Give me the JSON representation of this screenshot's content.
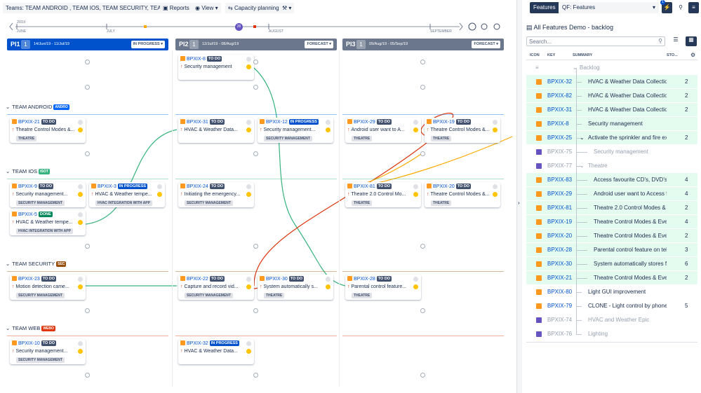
{
  "toolbar": {
    "teams": "Teams: TEAM ANDROID , TEAM IOS, TEAM SECURITY, TEAM WEB",
    "reports": "Reports",
    "view": "View",
    "capacity": "Capacity planning"
  },
  "timeline": {
    "year": "2019",
    "months": [
      "JUNE",
      "JULY",
      "AUGUST",
      "SEPTEMBER"
    ],
    "sprint": "26"
  },
  "pis": [
    {
      "name": "PI1",
      "number": "1",
      "dates": "14/Jun/19 - 11/Jul/19",
      "status": "IN PROGRESS",
      "color": "#0052cc"
    },
    {
      "name": "PI2",
      "number": "1",
      "dates": "12/Jul/19 - 08/Aug/19",
      "status": "FORECAST",
      "color": "#6b778c"
    },
    {
      "name": "PI3",
      "number": "1",
      "dates": "09/Aug/19 - 05/Sep/19",
      "status": "FORECAST",
      "color": "#6b778c"
    }
  ],
  "unplanned": [
    [],
    [
      {
        "key": "BPXIX-8",
        "status": "TO DO",
        "status_color": "#42526e",
        "title": "Security management"
      }
    ],
    []
  ],
  "teams": [
    {
      "name": "TEAM ANDROID",
      "tag": "ANDRO",
      "tag_color": "#0065ff",
      "columns": [
        [
          {
            "key": "BPXIX-21",
            "status": "TO DO",
            "status_color": "#42526e",
            "title": "Theatre Control Modes &...",
            "label": "THEATRE"
          }
        ],
        [
          {
            "key": "BPXIX-31",
            "status": "TO DO",
            "status_color": "#42526e",
            "title": "HVAC & Weather Data..."
          },
          {
            "key": "BPXIX-12",
            "status": "IN PROGRESS",
            "status_color": "#0052cc",
            "title": "Security management...",
            "label": "SECURITY MANAGEMENT"
          }
        ],
        [
          {
            "key": "BPXIX-29",
            "status": "TO DO",
            "status_color": "#42526e",
            "title": "Android user want to A...",
            "label": "THEATRE"
          },
          {
            "key": "BPXIX-19",
            "status": "TO DO",
            "status_color": "#42526e",
            "title": "Theatre Control Modes &...",
            "label": "THEATRE"
          }
        ]
      ]
    },
    {
      "name": "TEAM IOS",
      "tag": "ISOT",
      "tag_color": "#36b37e",
      "columns": [
        [
          {
            "key": "BPXIX-9",
            "status": "TO DO",
            "status_color": "#42526e",
            "title": "Security management...",
            "label": "SECURITY MANAGEMENT"
          },
          {
            "key": "BPXIX-3",
            "status": "IN PROGRESS",
            "status_color": "#0052cc",
            "title": "HVAC & Weather tempe...",
            "label": "HVAC INTEGRATION WITH APP"
          },
          {
            "key": "BPXIX-5",
            "status": "DONE",
            "status_color": "#00875a",
            "title": "HVAC & Weather tempe...",
            "label": "HVAC INTEGRATION WITH APP"
          }
        ],
        [
          {
            "key": "BPXIX-24",
            "status": "TO DO",
            "status_color": "#42526e",
            "title": "Initiating the emergency...",
            "label": "SECURITY MANAGEMENT"
          }
        ],
        [
          {
            "key": "BPXIX-81",
            "status": "TO DO",
            "status_color": "#42526e",
            "title": "Theatre 2.0 Control Mo...",
            "label": "THEATRE"
          },
          {
            "key": "BPXIX-20",
            "status": "TO DO",
            "status_color": "#42526e",
            "title": "Theatre Control Modes &...",
            "label": "THEATRE"
          }
        ]
      ]
    },
    {
      "name": "TEAM SECURITY",
      "tag": "SEC",
      "tag_color": "#974f0c",
      "columns": [
        [
          {
            "key": "BPXIX-23",
            "status": "TO DO",
            "status_color": "#42526e",
            "title": "Motion detection came...",
            "label": "SECURITY MANAGEMENT"
          }
        ],
        [
          {
            "key": "BPXIX-22",
            "status": "TO DO",
            "status_color": "#42526e",
            "title": "Capture and record vid...",
            "label": "SECURITY MANAGEMENT"
          },
          {
            "key": "BPXIX-30",
            "status": "TO DO",
            "status_color": "#42526e",
            "title": "System automatically s...",
            "label": "THEATRE"
          }
        ],
        [
          {
            "key": "BPXIX-28",
            "status": "TO DO",
            "status_color": "#42526e",
            "title": "Parental control feature...",
            "label": "THEATRE"
          }
        ]
      ]
    },
    {
      "name": "TEAM WEB",
      "tag": "WEBO",
      "tag_color": "#de350b",
      "columns": [
        [
          {
            "key": "BPXIX-10",
            "status": "TO DO",
            "status_color": "#42526e",
            "title": "Security management...",
            "label": "SECURITY MANAGEMENT"
          }
        ],
        [
          {
            "key": "BPXIX-32",
            "status": "IN PROGRESS",
            "status_color": "#0052cc",
            "title": "HVAC & Weather Data..."
          }
        ],
        []
      ]
    }
  ],
  "panel": {
    "tab": "Features",
    "filter": "QF: Features",
    "title": "All Features Demo - backlog",
    "search": "Search...",
    "columns": [
      "ICON",
      "KEY",
      "SUMMARY",
      "STO..."
    ],
    "group": "Backlog",
    "rows": [
      {
        "key": "BPXIX-32",
        "summary": "HVAC & Weather Data Collection for",
        "points": "2",
        "bg": "#e3fcef",
        "icon_color": "#ff991f"
      },
      {
        "key": "BPXIX-82",
        "summary": "HVAC & Weather Data Collection for",
        "points": "2",
        "bg": "#e3fcef",
        "icon_color": "#ff991f"
      },
      {
        "key": "BPXIX-31",
        "summary": "HVAC & Weather Data Collection for",
        "points": "2",
        "bg": "#e3fcef",
        "icon_color": "#ff991f"
      },
      {
        "key": "BPXIX-8",
        "summary": "Security management",
        "points": null,
        "bg": "#e3fcef",
        "icon_color": "#ff991f"
      },
      {
        "key": "BPXIX-25",
        "summary": "Activate the sprinkler and fire exting",
        "points": "2",
        "bg": "#e3fcef",
        "icon_color": "#ff991f",
        "children": [
          {
            "key": "BPXIX-75",
            "summary": "Security management",
            "points": null,
            "bg": "#ffffff",
            "icon_color": "#6554c0",
            "text_color": "#97a0af"
          }
        ]
      },
      {
        "key": "BPXIX-77",
        "summary": "Theatre",
        "points": null,
        "bg": "#ffffff",
        "icon_color": "#6554c0",
        "text_color": "#97a0af",
        "children": [
          {
            "key": "BPXIX-83",
            "summary": "Access favourite CD's, DVD's fron",
            "points": "4",
            "bg": "#e3fcef",
            "icon_color": "#ff991f"
          },
          {
            "key": "BPXIX-29",
            "summary": "Android user want to Access fav",
            "points": "4",
            "bg": "#e3fcef",
            "icon_color": "#ff991f"
          },
          {
            "key": "BPXIX-81",
            "summary": "Theatre 2.0 Control Modes & Eve",
            "points": "2",
            "bg": "#e3fcef",
            "icon_color": "#ff991f"
          },
          {
            "key": "BPXIX-19",
            "summary": "Theatre Control Modes & Events",
            "points": "4",
            "bg": "#e3fcef",
            "icon_color": "#ff991f"
          },
          {
            "key": "BPXIX-20",
            "summary": "Theatre Control Modes & Events",
            "points": "2",
            "bg": "#e3fcef",
            "icon_color": "#ff991f"
          },
          {
            "key": "BPXIX-28",
            "summary": "Parental control feature on televi",
            "points": "3",
            "bg": "#e3fcef",
            "icon_color": "#ff991f"
          },
          {
            "key": "BPXIX-30",
            "summary": "System automatically stores favo",
            "points": "6",
            "bg": "#e3fcef",
            "icon_color": "#ff991f"
          },
          {
            "key": "BPXIX-21",
            "summary": "Theatre Control Modes & Events",
            "points": "2",
            "bg": "#e3fcef",
            "icon_color": "#ff991f"
          }
        ]
      },
      {
        "key": "BPXIX-80",
        "summary": "Light GUI improvement",
        "points": null,
        "bg": "#ffffff",
        "icon_color": "#ff991f"
      },
      {
        "key": "BPXIX-79",
        "summary": "CLONE - Light control by phone or ap",
        "points": "5",
        "bg": "#ffffff",
        "icon_color": "#ff991f"
      },
      {
        "key": "BPXIX-74",
        "summary": "HVAC and Weather Epic",
        "points": null,
        "bg": "#ffffff",
        "icon_color": "#6554c0",
        "text_color": "#97a0af"
      },
      {
        "key": "BPXIX-76",
        "summary": "Lighting",
        "points": null,
        "bg": "#ffffff",
        "icon_color": "#6554c0",
        "text_color": "#97a0af"
      }
    ]
  }
}
